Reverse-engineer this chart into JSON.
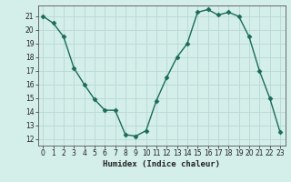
{
  "x": [
    0,
    1,
    2,
    3,
    4,
    5,
    6,
    7,
    8,
    9,
    10,
    11,
    12,
    13,
    14,
    15,
    16,
    17,
    18,
    19,
    20,
    21,
    22,
    23
  ],
  "y": [
    21,
    20.5,
    19.5,
    17.2,
    16,
    14.9,
    14.1,
    14.1,
    12.3,
    12.2,
    12.6,
    14.8,
    16.5,
    18.0,
    19.0,
    21.3,
    21.5,
    21.1,
    21.3,
    21.0,
    19.5,
    17.0,
    15.0,
    12.5
  ],
  "xlabel": "Humidex (Indice chaleur)",
  "ylim": [
    11.5,
    21.8
  ],
  "xlim": [
    -0.5,
    23.5
  ],
  "yticks": [
    12,
    13,
    14,
    15,
    16,
    17,
    18,
    19,
    20,
    21
  ],
  "xticks": [
    0,
    1,
    2,
    3,
    4,
    5,
    6,
    7,
    8,
    9,
    10,
    11,
    12,
    13,
    14,
    15,
    16,
    17,
    18,
    19,
    20,
    21,
    22,
    23
  ],
  "line_color": "#1a6b5a",
  "marker": "D",
  "marker_size": 2.5,
  "bg_color": "#d4eeea",
  "grid_color": "#b8d8d4",
  "axis_color": "#555555",
  "tick_fontsize": 5.5,
  "label_fontsize": 6.5
}
